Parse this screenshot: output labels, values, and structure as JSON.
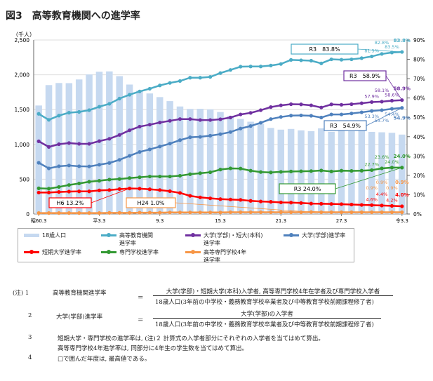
{
  "title": "図3　高等教育機関への進学率",
  "chart_data": {
    "type": "bar+line",
    "title": "図3　高等教育機関への進学率",
    "ylabel_left": "（千人）",
    "left_axis": {
      "ylim": [
        0,
        2500
      ],
      "ticks": [
        "0",
        "500",
        "1,000",
        "1,500",
        "2,000",
        "2,500"
      ]
    },
    "right_axis": {
      "ylim": [
        0,
        90
      ],
      "ticks": [
        "0%",
        "10%",
        "20%",
        "30%",
        "40%",
        "50%",
        "60%",
        "70%",
        "80%",
        "90%"
      ]
    },
    "x_tick_labels": [
      "昭60.3",
      "平3.3",
      "9.3",
      "15.3",
      "21.3",
      "27.3",
      "令3.3"
    ],
    "x_tick_index": [
      0,
      6,
      12,
      18,
      24,
      30,
      36
    ],
    "grid": true,
    "legend_placement": "bottom",
    "series": [
      {
        "name": "18歳人口",
        "axis": "left",
        "kind": "bar",
        "color": "#c6d9f0",
        "values": [
          1559,
          1852,
          1882,
          1880,
          1933,
          2005,
          2044,
          2049,
          1981,
          1860,
          1773,
          1732,
          1680,
          1622,
          1545,
          1510,
          1512,
          1503,
          1465,
          1411,
          1366,
          1326,
          1300,
          1237,
          1212,
          1222,
          1202,
          1191,
          1231,
          1181,
          1200,
          1190,
          1198,
          1180,
          1174,
          1167,
          1141
        ]
      },
      {
        "name": "高等教育機関進学率",
        "axis": "right",
        "kind": "line",
        "color": "#4bacc6",
        "values": [
          51.8,
          48.7,
          50.9,
          52.4,
          52.8,
          53.7,
          55.5,
          57.0,
          59.7,
          61.7,
          63.4,
          64.8,
          66.5,
          67.8,
          68.8,
          70.5,
          70.5,
          70.9,
          72.9,
          74.5,
          76.2,
          76.3,
          76.3,
          76.8,
          77.6,
          79.7,
          79.5,
          79.3,
          77.9,
          80.0,
          79.8,
          80.0,
          80.6,
          81.5,
          82.8,
          83.5,
          83.8
        ],
        "labels": [
          "81.5%",
          "82.8%",
          "83.5%",
          "83.8%"
        ],
        "callout": "R3　83.8%"
      },
      {
        "name": "大学(学部)・短大(本科)進学率",
        "axis": "right",
        "kind": "line",
        "color": "#7030a0",
        "values": [
          37.6,
          34.7,
          36.1,
          36.7,
          36.3,
          36.3,
          37.7,
          38.9,
          40.9,
          43.3,
          45.2,
          46.2,
          47.3,
          48.2,
          49.1,
          49.1,
          48.6,
          48.6,
          49.0,
          49.9,
          51.5,
          52.3,
          53.7,
          55.3,
          56.2,
          56.8,
          56.7,
          56.2,
          55.1,
          56.7,
          56.5,
          56.8,
          57.3,
          57.9,
          58.1,
          58.6,
          58.9
        ],
        "labels": [
          "57.9%",
          "58.1%",
          "58.6%",
          "58.9%"
        ],
        "callout": "R3　58.9%"
      },
      {
        "name": "大学(学部)進学率",
        "axis": "right",
        "kind": "line",
        "color": "#4f81bd",
        "values": [
          26.5,
          23.6,
          24.7,
          25.1,
          24.7,
          24.6,
          25.5,
          26.4,
          28.0,
          30.1,
          32.1,
          33.4,
          34.9,
          36.4,
          38.2,
          39.7,
          39.9,
          40.5,
          41.3,
          42.4,
          44.2,
          45.5,
          47.2,
          49.1,
          50.2,
          50.9,
          51.0,
          50.8,
          49.9,
          51.5,
          51.5,
          52.0,
          52.6,
          53.3,
          53.7,
          54.4,
          54.9
        ],
        "labels": [
          "53.3%",
          "53.7%",
          "54.4%",
          "54.9%"
        ],
        "callout": "R3　54.9%"
      },
      {
        "name": "短期大学進学率",
        "axis": "right",
        "kind": "line",
        "color": "#ff0000",
        "values": [
          11.1,
          11.1,
          11.4,
          11.6,
          11.7,
          11.7,
          12.2,
          12.4,
          12.9,
          13.2,
          13.1,
          12.8,
          12.4,
          11.8,
          10.9,
          9.4,
          8.6,
          8.1,
          7.7,
          7.5,
          7.3,
          6.8,
          6.5,
          6.3,
          6.0,
          5.9,
          5.7,
          5.4,
          5.3,
          5.2,
          5.1,
          4.9,
          4.7,
          4.6,
          4.4,
          4.2,
          4.0
        ],
        "labels": [
          "4.6%",
          "4.4%",
          "4.2%",
          "4.0%"
        ],
        "callout": "H6 13.2%"
      },
      {
        "name": "専門学校進学率",
        "axis": "right",
        "kind": "line",
        "color": "#339933",
        "values": [
          13.3,
          13.1,
          14.0,
          15.0,
          15.8,
          16.7,
          17.2,
          17.8,
          18.1,
          18.6,
          19.0,
          19.4,
          19.4,
          19.4,
          19.8,
          20.6,
          21.1,
          21.6,
          23.0,
          23.6,
          23.5,
          22.4,
          21.7,
          21.5,
          21.8,
          22.0,
          22.1,
          22.2,
          22.5,
          22.0,
          22.4,
          22.3,
          22.4,
          22.7,
          23.6,
          24.0,
          24.0
        ],
        "labels": [
          "22.7%",
          "23.6%",
          "24.0%",
          "24.0%"
        ],
        "callout": "R3 24.0%"
      },
      {
        "name": "高等専門学校4年進学率",
        "axis": "right",
        "kind": "line",
        "color": "#f79646",
        "values": [
          0.5,
          0.5,
          0.5,
          0.5,
          0.5,
          0.5,
          0.5,
          0.6,
          0.6,
          0.6,
          0.7,
          0.7,
          0.7,
          0.8,
          0.8,
          0.8,
          0.8,
          0.8,
          0.8,
          0.9,
          0.9,
          0.9,
          0.9,
          0.9,
          0.9,
          0.9,
          0.9,
          1.0,
          0.9,
          0.9,
          0.9,
          0.9,
          0.9,
          0.9,
          0.9,
          0.9,
          0.9
        ],
        "labels": [
          "0.9%",
          "0.9%",
          "0.9%",
          "0.9%"
        ],
        "callout": "H24 1.0%"
      }
    ]
  },
  "legend": [
    {
      "label": "18歳人口",
      "color": "#c6d9f0",
      "bar": true
    },
    {
      "label": "高等教育機関\n進学率",
      "color": "#4bacc6"
    },
    {
      "label": "大学(学部)・短大(本科)\n進学率",
      "color": "#7030a0"
    },
    {
      "label": "大学(学部)進学率",
      "color": "#4f81bd"
    },
    {
      "label": "短期大学進学率",
      "color": "#ff0000"
    },
    {
      "label": "専門学校進学率",
      "color": "#339933"
    },
    {
      "label": "高等専門学校4年\n進学率",
      "color": "#f79646"
    }
  ],
  "notes": {
    "head": "(注) 1",
    "n1_label": "高等教育機関進学率",
    "eq": "＝",
    "n1_num": "大学(学部)・短期大学(本科)入学者, 高等専門学校4年在学者及び専門学校入学者",
    "den": "18歳人口(3年前の中学校・義務教育学校卒業者及び中等教育学校前期課程修了者)",
    "n2": "2",
    "n2_label": "大学(学部)進学率",
    "n2_num": "大学(学部)の入学者",
    "n3": "3",
    "n3_a": "短期大学・専門学校の進学率は, (注)２ 計算式の入学者部分にそれぞれの入学者を当てはめて算出。",
    "n3_b": "高等専門学校4年進学率は, 同部分に4年生の学生数を当てはめて算出。",
    "n4": "4",
    "n4_text": "□で囲んだ年度は, 最高値である。"
  }
}
